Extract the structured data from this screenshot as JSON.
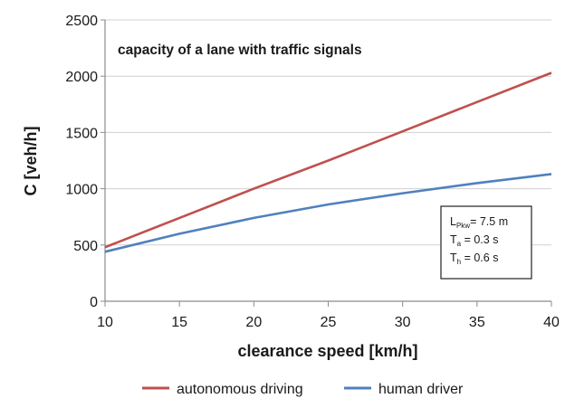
{
  "chart_data": {
    "type": "line",
    "title": "capacity of a lane with traffic signals",
    "xlabel": "clearance speed [km/h]",
    "ylabel": "C [veh/h]",
    "xlim": [
      10,
      40
    ],
    "ylim": [
      0,
      2500
    ],
    "xticks": [
      10,
      15,
      20,
      25,
      30,
      35,
      40
    ],
    "yticks": [
      0,
      500,
      1000,
      1500,
      2000,
      2500
    ],
    "grid": true,
    "legend_position": "bottom",
    "series": [
      {
        "name": "autonomous driving",
        "color": "#c0504d",
        "x": [
          10,
          15,
          20,
          25,
          30,
          35,
          40
        ],
        "values": [
          480,
          740,
          1000,
          1250,
          1510,
          1770,
          2030
        ]
      },
      {
        "name": "human driver",
        "color": "#4f81bd",
        "x": [
          10,
          15,
          20,
          25,
          30,
          35,
          40
        ],
        "values": [
          440,
          600,
          740,
          860,
          960,
          1050,
          1130
        ]
      }
    ],
    "annotation": {
      "lines": [
        {
          "main": "L",
          "sub": "Pkw",
          "rest": "= 7.5 m"
        },
        {
          "main": "T",
          "sub": "a",
          "rest": " = 0.3 s"
        },
        {
          "main": "T",
          "sub": "h",
          "rest": " = 0.6 s"
        }
      ]
    }
  }
}
